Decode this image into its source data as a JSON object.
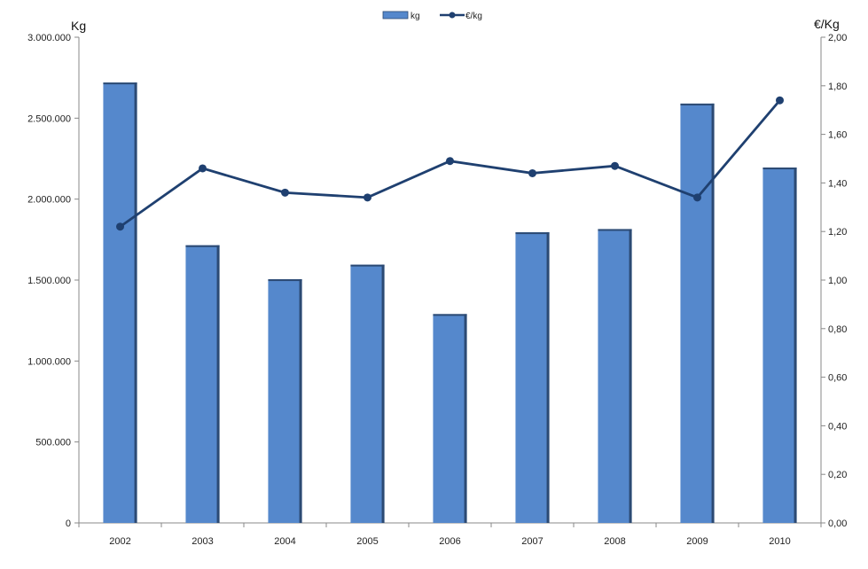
{
  "chart_data": {
    "type": "bar",
    "categories": [
      "2002",
      "2003",
      "2004",
      "2005",
      "2006",
      "2007",
      "2008",
      "2009",
      "2010"
    ],
    "series": [
      {
        "name": "kg",
        "type": "bar",
        "axis": "left",
        "values": [
          2720000,
          1715000,
          1505000,
          1595000,
          1290000,
          1795000,
          1815000,
          2590000,
          2195000
        ]
      },
      {
        "name": "€/kg",
        "type": "line",
        "axis": "right",
        "values": [
          1.22,
          1.46,
          1.36,
          1.34,
          1.49,
          1.44,
          1.47,
          1.34,
          1.74
        ]
      }
    ],
    "ylabel_left": "Kg",
    "ylabel_right": "€/Kg",
    "ylim_left": [
      0,
      3000000
    ],
    "ylim_right": [
      0,
      2.0
    ],
    "y_ticks_left": [
      "0",
      "500.000",
      "1.000.000",
      "1.500.000",
      "2.000.000",
      "2.500.000",
      "3.000.000"
    ],
    "y_ticks_right": [
      "0,00",
      "0,20",
      "0,40",
      "0,60",
      "0,80",
      "1,00",
      "1,20",
      "1,40",
      "1,60",
      "1,80",
      "2,00"
    ],
    "legend_position": "top-center",
    "grid": false,
    "colors": {
      "bar_fill": "#5588cc",
      "bar_shadow": "#2c4a73",
      "line": "#1f4070",
      "axis": "#888888"
    }
  }
}
